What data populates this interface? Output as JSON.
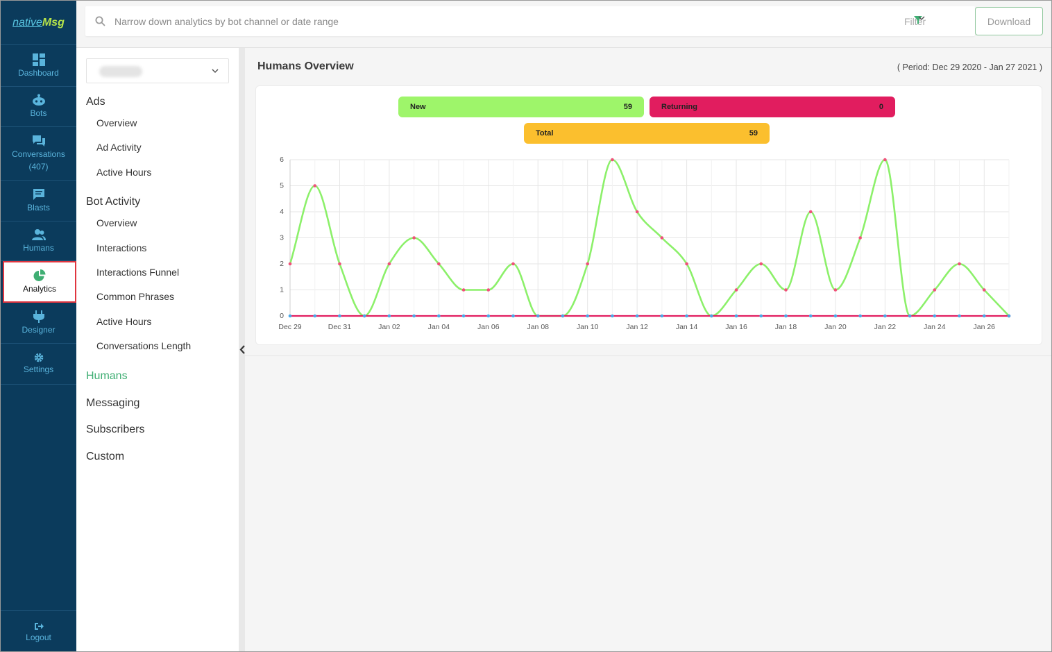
{
  "brand": {
    "logo_part1": "native",
    "logo_part2": "Msg"
  },
  "nav": {
    "items": [
      {
        "label": "Dashboard",
        "icon": "dashboard-icon"
      },
      {
        "label": "Bots",
        "icon": "bot-icon"
      },
      {
        "label": "Conversations",
        "sub": "(407)",
        "icon": "chat-icon"
      },
      {
        "label": "Blasts",
        "icon": "message-icon"
      },
      {
        "label": "Humans",
        "icon": "users-icon"
      },
      {
        "label": "Analytics",
        "icon": "pie-chart-icon"
      },
      {
        "label": "Designer",
        "icon": "plug-icon"
      },
      {
        "label": "Settings",
        "icon": "gear-icon"
      }
    ],
    "logout": "Logout",
    "active_color": "#e0353f",
    "bg_color": "#0b3b5c"
  },
  "search": {
    "placeholder": "Narrow down analytics by bot channel or date range"
  },
  "filter_label": "Filter",
  "download_label": "Download",
  "submenu": {
    "sections": [
      {
        "title": "Ads",
        "items": [
          "Overview",
          "Ad Activity",
          "Active Hours"
        ]
      },
      {
        "title": "Bot Activity",
        "items": [
          "Overview",
          "Interactions",
          "Interactions Funnel",
          "Common Phrases",
          "Active Hours",
          "Conversations Length"
        ]
      }
    ],
    "links": [
      "Humans",
      "Messaging",
      "Subscribers",
      "Custom"
    ],
    "active_link": "Humans"
  },
  "overview": {
    "title": "Humans Overview",
    "period": "( Period: Dec 29 2020 - Jan 27 2021 )",
    "stats": {
      "new": {
        "label": "New",
        "value": "59",
        "color": "#9ef56a"
      },
      "returning": {
        "label": "Returning",
        "value": "0",
        "color": "#e11d5f"
      },
      "total": {
        "label": "Total",
        "value": "59",
        "color": "#fbbf2e"
      }
    }
  },
  "chart_data": {
    "type": "line",
    "x": [
      "Dec 29",
      "Dec 30",
      "Dec 31",
      "Jan 01",
      "Jan 02",
      "Jan 03",
      "Jan 04",
      "Jan 05",
      "Jan 06",
      "Jan 07",
      "Jan 08",
      "Jan 09",
      "Jan 10",
      "Jan 11",
      "Jan 12",
      "Jan 13",
      "Jan 14",
      "Jan 15",
      "Jan 16",
      "Jan 17",
      "Jan 18",
      "Jan 19",
      "Jan 20",
      "Jan 21",
      "Jan 22",
      "Jan 23",
      "Jan 24",
      "Jan 25",
      "Jan 26",
      "Jan 27"
    ],
    "tick_labels": [
      "Dec 29",
      "Dec 31",
      "Jan 02",
      "Jan 04",
      "Jan 06",
      "Jan 08",
      "Jan 10",
      "Jan 12",
      "Jan 14",
      "Jan 16",
      "Jan 18",
      "Jan 20",
      "Jan 22",
      "Jan 24",
      "Jan 26"
    ],
    "y_ticks": [
      "0",
      "1",
      "2",
      "3",
      "4",
      "5",
      "6"
    ],
    "ylim": [
      0,
      6
    ],
    "grid": true,
    "series": [
      {
        "name": "New",
        "color": "#8cf06a",
        "marker_color": "#f0517a",
        "values": [
          2,
          5,
          2,
          0,
          2,
          3,
          2,
          1,
          1,
          2,
          0,
          0,
          2,
          6,
          4,
          3,
          2,
          0,
          1,
          2,
          1,
          4,
          1,
          3,
          6,
          0,
          1,
          2,
          1,
          0
        ]
      },
      {
        "name": "Returning",
        "color": "#e11d5f",
        "marker_color": "#4aa8e8",
        "values": [
          0,
          0,
          0,
          0,
          0,
          0,
          0,
          0,
          0,
          0,
          0,
          0,
          0,
          0,
          0,
          0,
          0,
          0,
          0,
          0,
          0,
          0,
          0,
          0,
          0,
          0,
          0,
          0,
          0,
          0
        ]
      }
    ]
  }
}
